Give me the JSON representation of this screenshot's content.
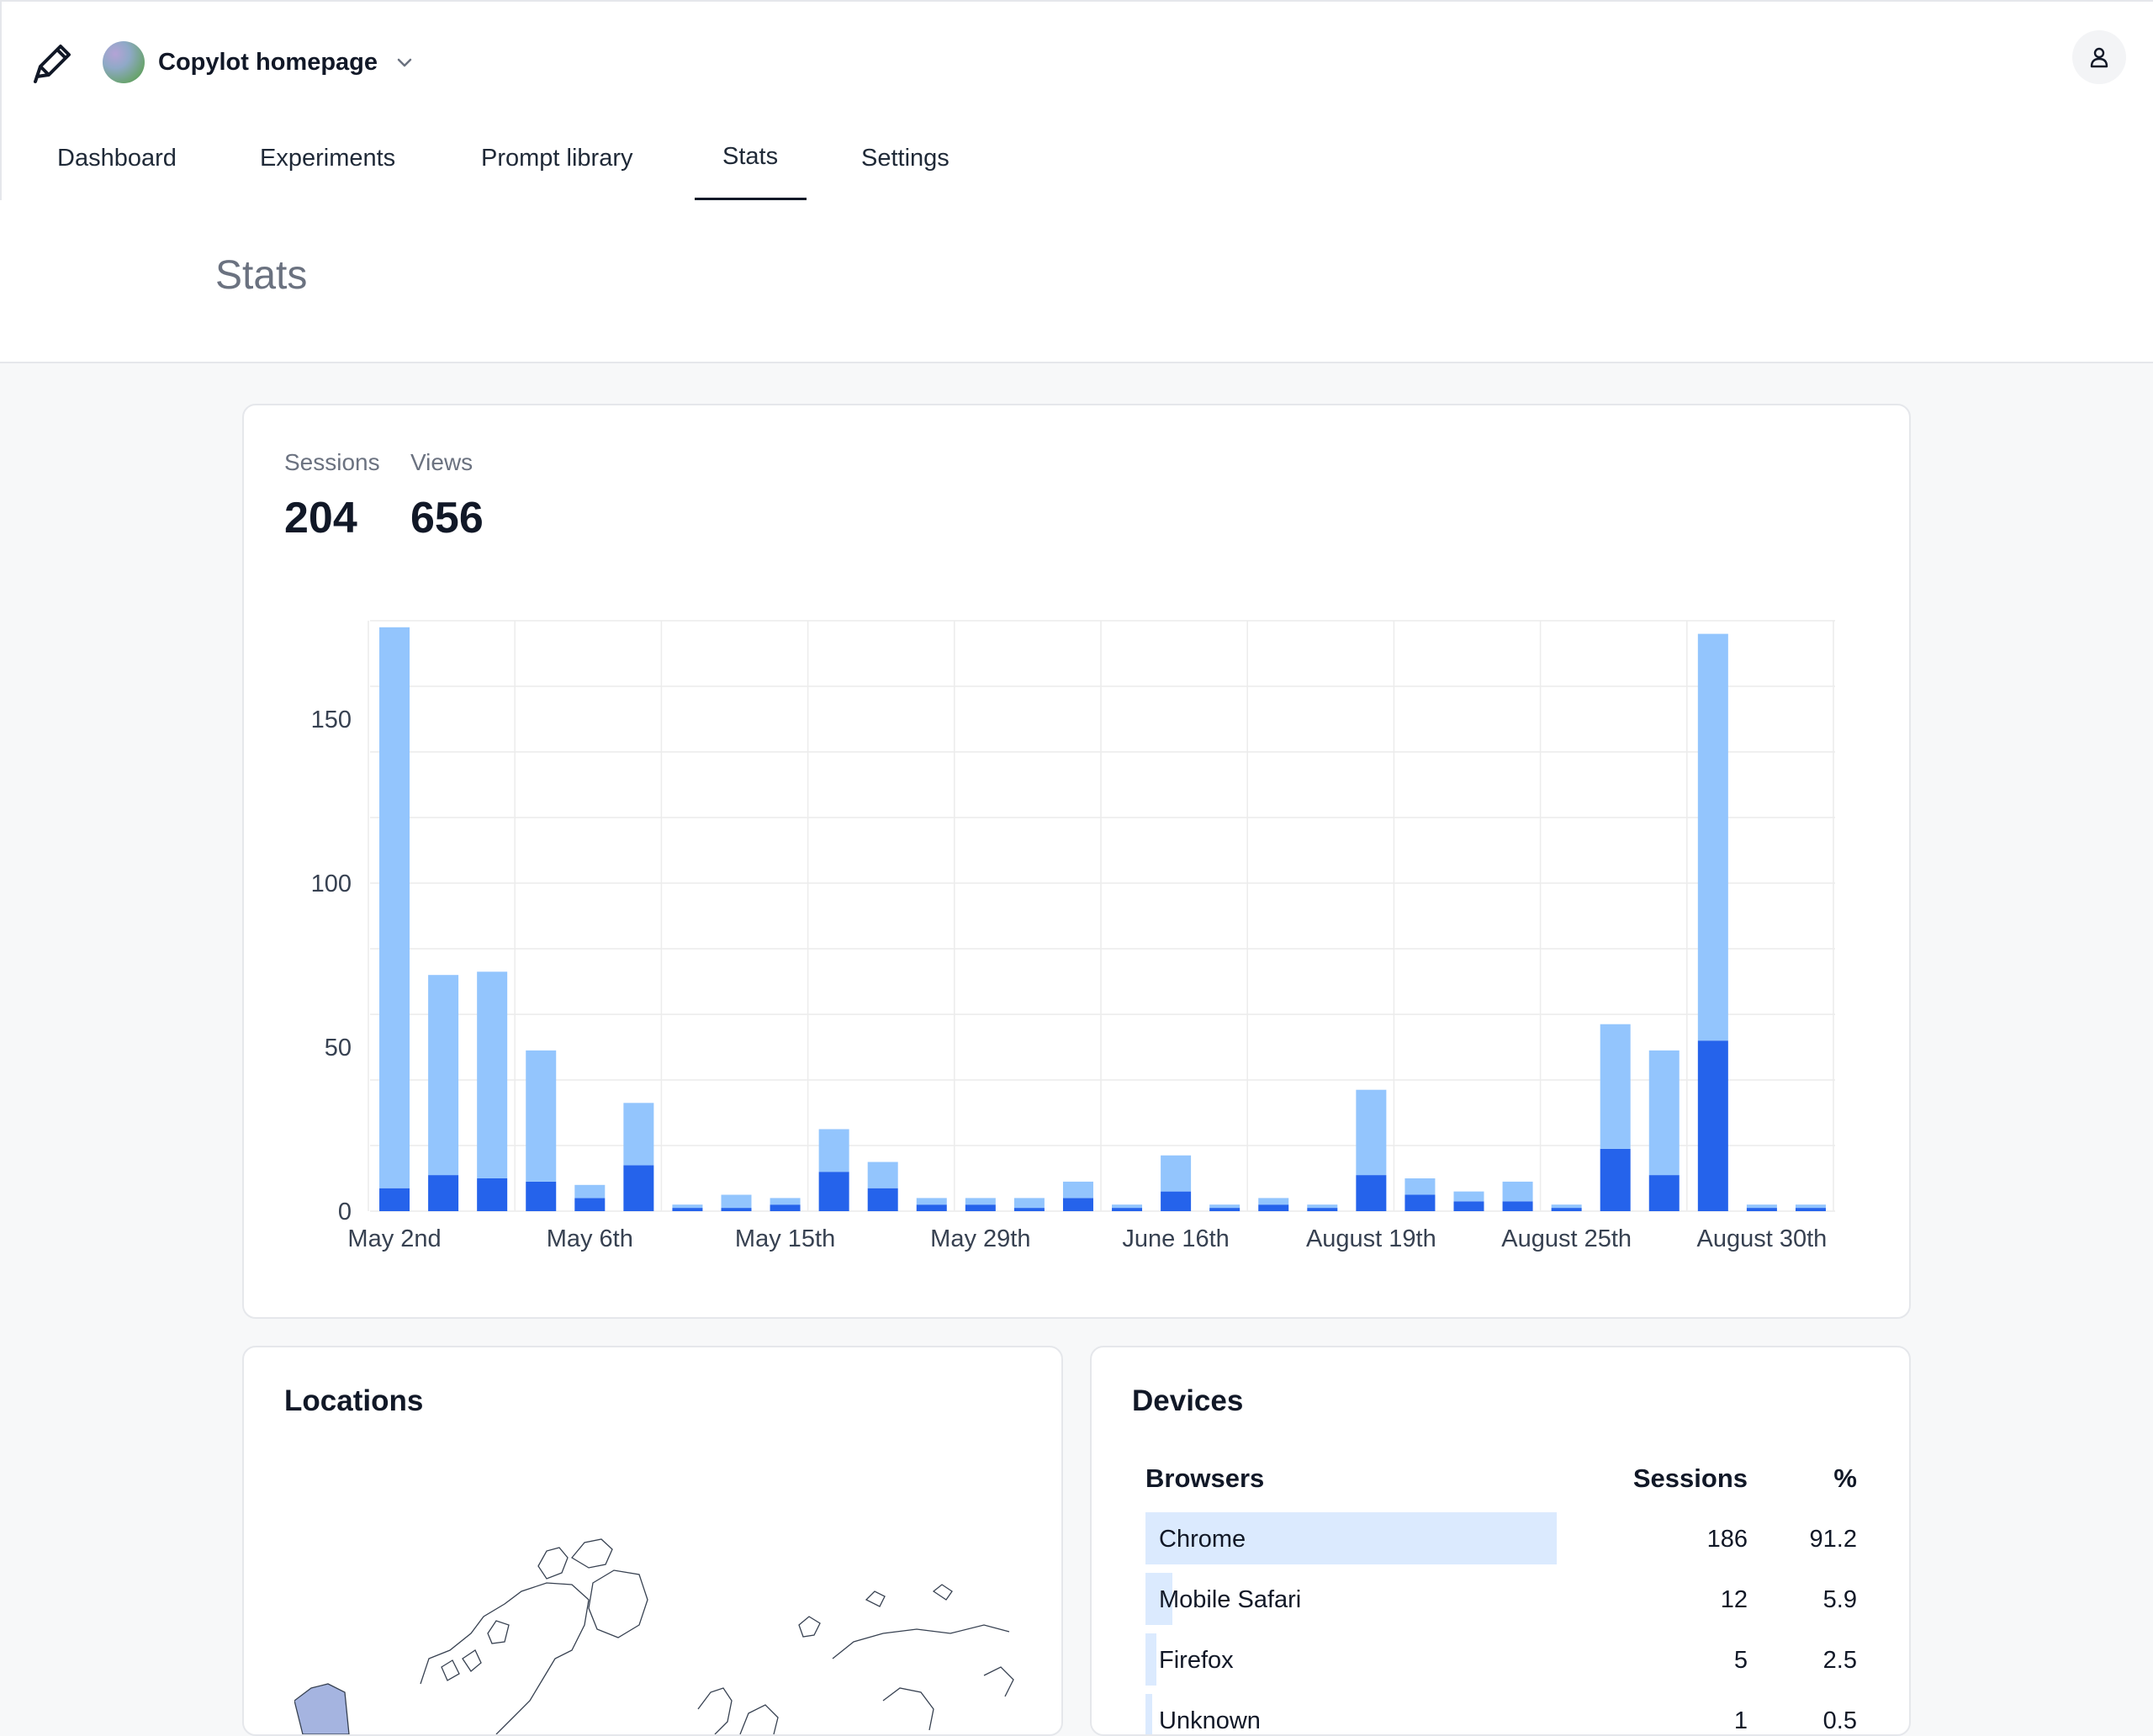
{
  "header": {
    "project_name": "Copylot homepage",
    "icons": {
      "logo": "pen-icon",
      "project_menu": "chevron-down-icon",
      "user": "user-icon"
    }
  },
  "tabs": [
    {
      "label": "Dashboard",
      "active": false
    },
    {
      "label": "Experiments",
      "active": false
    },
    {
      "label": "Prompt library",
      "active": false
    },
    {
      "label": "Stats",
      "active": true
    },
    {
      "label": "Settings",
      "active": false
    }
  ],
  "page": {
    "title": "Stats"
  },
  "summary": {
    "sessions_label": "Sessions",
    "sessions_value": "204",
    "views_label": "Views",
    "views_value": "656"
  },
  "chart_data": {
    "type": "bar",
    "stacked": true,
    "categories": [
      "May 2nd",
      "",
      "",
      "",
      "May 6th",
      "",
      "",
      "",
      "May 15th",
      "",
      "",
      "",
      "May 29th",
      "",
      "",
      "",
      "June 16th",
      "",
      "",
      "",
      "August 19th",
      "",
      "",
      "",
      "August 25th",
      "",
      "",
      "",
      "August 30th",
      ""
    ],
    "x_tick_labels": [
      "May 2nd",
      "May 6th",
      "May 15th",
      "May 29th",
      "June 16th",
      "August 19th",
      "August 25th",
      "August 30th"
    ],
    "series": [
      {
        "values": [
          7,
          11,
          10,
          9,
          4,
          14,
          1,
          1,
          2,
          12,
          7,
          2,
          2,
          1,
          4,
          1,
          6,
          1,
          2,
          1,
          11,
          5,
          3,
          3,
          1,
          19,
          11,
          52,
          1,
          1
        ]
      },
      {
        "values": [
          171,
          61,
          63,
          40,
          4,
          19,
          1,
          4,
          2,
          13,
          8,
          2,
          2,
          3,
          5,
          1,
          11,
          1,
          2,
          1,
          26,
          5,
          3,
          6,
          1,
          38,
          38,
          124,
          1,
          1
        ]
      }
    ],
    "colors": [
      "#2563eb",
      "#93c5fd"
    ],
    "y_ticks": [
      0,
      50,
      100,
      150
    ],
    "ylim": [
      0,
      180
    ],
    "grid": true
  },
  "locations": {
    "title": "Locations"
  },
  "devices": {
    "title": "Devices",
    "columns": [
      "Browsers",
      "Sessions",
      "%"
    ],
    "rows": [
      {
        "name": "Chrome",
        "sessions": "186",
        "percent": "91.2",
        "pct": 91.2
      },
      {
        "name": "Mobile Safari",
        "sessions": "12",
        "percent": "5.9",
        "pct": 5.9
      },
      {
        "name": "Firefox",
        "sessions": "5",
        "percent": "2.5",
        "pct": 2.5
      },
      {
        "name": "Unknown",
        "sessions": "1",
        "percent": "0.5",
        "pct": 0.5
      }
    ]
  }
}
